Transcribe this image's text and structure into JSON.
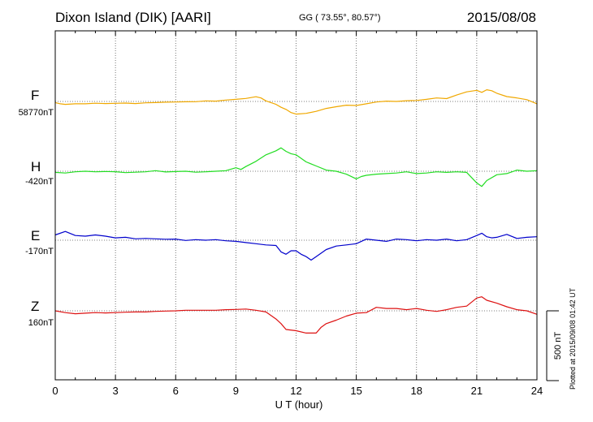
{
  "header": {
    "station": "Dixon Island (DIK)  [AARI]",
    "coords": "GG ( 73.55°,  80.57°)",
    "date": "2015/08/08"
  },
  "plotted_note": "Plotted at 2015/09/08 01:42 UT",
  "scale_bar_label": "500 nT",
  "chart_data": {
    "type": "line",
    "xlabel": "U T (hour)",
    "xlim": [
      0,
      24
    ],
    "xticks": [
      "0",
      "3",
      "6",
      "9",
      "12",
      "15",
      "18",
      "21",
      "24"
    ],
    "grid": true,
    "scale_nT": 500,
    "series": [
      {
        "name": "F",
        "baseline_label": "58770nT",
        "color": "#f0a800",
        "x": [
          0,
          0.25,
          0.5,
          1,
          1.5,
          2,
          2.5,
          3,
          3.5,
          4,
          4.5,
          5,
          5.5,
          6,
          6.5,
          7,
          7.5,
          8,
          8.5,
          9,
          9.5,
          10,
          10.25,
          10.5,
          10.75,
          11,
          11.25,
          11.5,
          11.75,
          12,
          12.5,
          13,
          13.5,
          14,
          14.5,
          15,
          15.5,
          16,
          16.5,
          17,
          17.5,
          18,
          18.5,
          19,
          19.5,
          20,
          20.5,
          21,
          21.25,
          21.5,
          21.75,
          22,
          22.5,
          23,
          23.5,
          24
        ],
        "y": [
          -10,
          -20,
          -25,
          -20,
          -20,
          -15,
          -18,
          -16,
          -14,
          -18,
          -12,
          -10,
          -6,
          -5,
          -3,
          -2,
          5,
          3,
          12,
          18,
          26,
          40,
          30,
          5,
          -10,
          -25,
          -50,
          -68,
          -95,
          -108,
          -102,
          -85,
          -60,
          -45,
          -32,
          -35,
          -20,
          -5,
          3,
          0,
          6,
          8,
          18,
          30,
          24,
          55,
          82,
          95,
          78,
          100,
          92,
          70,
          42,
          30,
          15,
          -20
        ]
      },
      {
        "name": "H",
        "baseline_label": "-420nT",
        "color": "#22dd22",
        "x": [
          0,
          0.5,
          1,
          1.5,
          2,
          2.5,
          3,
          3.5,
          4,
          4.5,
          5,
          5.5,
          6,
          6.5,
          7,
          7.5,
          8,
          8.5,
          9,
          9.25,
          9.5,
          10,
          10.5,
          11,
          11.25,
          11.5,
          11.75,
          12,
          12.5,
          13,
          13.5,
          14,
          14.5,
          15,
          15.25,
          15.5,
          16,
          16.5,
          17,
          17.5,
          18,
          18.5,
          19,
          19.5,
          20,
          20.5,
          21,
          21.25,
          21.5,
          22,
          22.5,
          23,
          23.5,
          24
        ],
        "y": [
          -10,
          -15,
          -5,
          0,
          -5,
          -2,
          -4,
          -12,
          -8,
          -5,
          5,
          -6,
          -3,
          0,
          -8,
          -5,
          0,
          5,
          30,
          15,
          40,
          85,
          140,
          175,
          200,
          170,
          150,
          140,
          80,
          45,
          10,
          0,
          -25,
          -65,
          -45,
          -35,
          -25,
          -20,
          -15,
          -5,
          -20,
          -15,
          -5,
          -10,
          -5,
          -10,
          -100,
          -130,
          -80,
          -30,
          -20,
          10,
          0,
          5
        ]
      },
      {
        "name": "E",
        "baseline_label": "-170nT",
        "color": "#0000cc",
        "x": [
          0,
          0.5,
          1,
          1.5,
          2,
          2.5,
          3,
          3.5,
          4,
          4.5,
          5,
          5.5,
          6,
          6.5,
          7,
          7.5,
          8,
          8.5,
          9,
          9.5,
          10,
          10.5,
          11,
          11.25,
          11.5,
          11.75,
          12,
          12.25,
          12.5,
          12.75,
          13,
          13.5,
          14,
          14.5,
          15,
          15.5,
          16,
          16.5,
          17,
          17.5,
          18,
          18.5,
          19,
          19.5,
          20,
          20.5,
          21,
          21.25,
          21.5,
          21.75,
          22,
          22.5,
          23,
          23.5,
          24
        ],
        "y": [
          45,
          75,
          40,
          35,
          45,
          35,
          20,
          25,
          12,
          15,
          12,
          8,
          10,
          -2,
          5,
          0,
          5,
          -5,
          -10,
          -20,
          -30,
          -40,
          -45,
          -100,
          -120,
          -90,
          -90,
          -120,
          -140,
          -170,
          -140,
          -80,
          -50,
          -40,
          -30,
          10,
          0,
          -10,
          10,
          5,
          -5,
          5,
          0,
          10,
          -5,
          5,
          40,
          60,
          30,
          20,
          25,
          50,
          15,
          25,
          30
        ]
      },
      {
        "name": "Z",
        "baseline_label": "160nT",
        "color": "#dd1111",
        "x": [
          0,
          0.5,
          1,
          1.5,
          2,
          2.5,
          3,
          3.5,
          4,
          4.5,
          5,
          5.5,
          6,
          6.5,
          7,
          7.5,
          8,
          8.5,
          9,
          9.5,
          10,
          10.5,
          11,
          11.25,
          11.5,
          12,
          12.5,
          13,
          13.25,
          13.5,
          14,
          14.5,
          15,
          15.5,
          16,
          16.5,
          17,
          17.5,
          18,
          18.5,
          19,
          19.5,
          20,
          20.5,
          21,
          21.25,
          21.5,
          22,
          22.5,
          23,
          23.5,
          24
        ],
        "y": [
          0,
          -15,
          -25,
          -20,
          -15,
          -18,
          -15,
          -12,
          -10,
          -10,
          -5,
          -2,
          0,
          5,
          5,
          5,
          5,
          10,
          12,
          15,
          5,
          -10,
          -70,
          -110,
          -160,
          -170,
          -190,
          -190,
          -140,
          -110,
          -80,
          -45,
          -20,
          -15,
          30,
          20,
          20,
          10,
          20,
          5,
          -5,
          10,
          30,
          40,
          110,
          120,
          90,
          65,
          35,
          10,
          0,
          -30
        ]
      }
    ]
  }
}
